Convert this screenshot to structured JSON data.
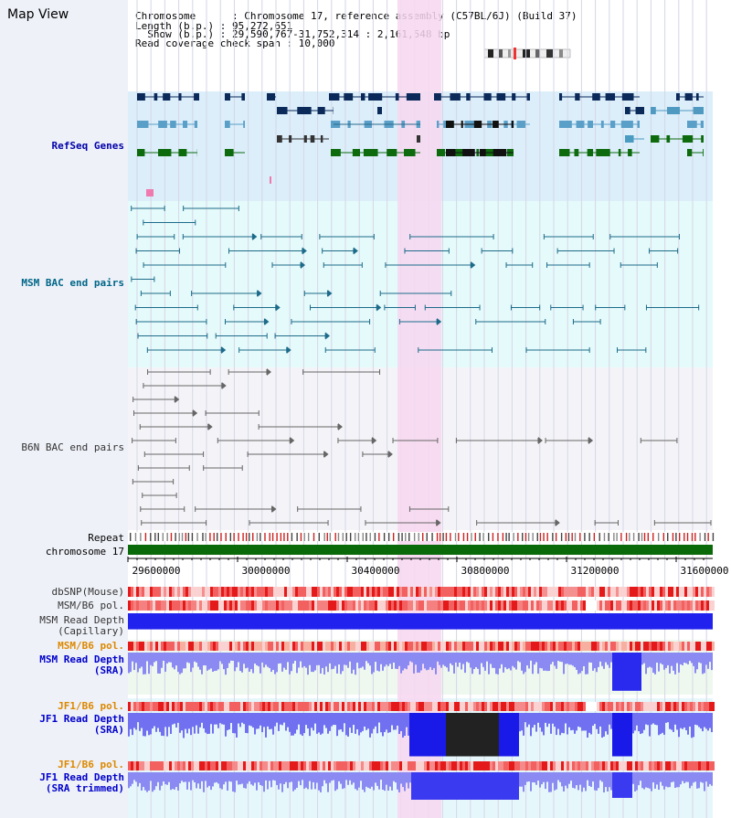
{
  "title": "Map View",
  "info": {
    "chromosome_line": "Chromosome      : Chromosome 17, reference assembly (C57BL/6J) (Build 37)",
    "length_line": "Length (b.p.) : 95,272,651",
    "show_line": "  Show (b.p.) : 29,590,767-31,752,314 : 2,161,548 bp",
    "coverage_line": "Read coverage check span : 10,000"
  },
  "tracks": {
    "refseq": "RefSeq Genes",
    "msm_bac": "MSM BAC end pairs",
    "b6n_bac": "B6N BAC end pairs",
    "repeat": "Repeat",
    "chromosome": "chromosome 17",
    "dbsnp": "dbSNP(Mouse)",
    "msm_b6_pol_1": "MSM/B6 pol.",
    "msm_depth_cap_1": "MSM Read Depth",
    "msm_depth_cap_2": "(Capillary)",
    "msm_b6_pol_2": "MSM/B6 pol.",
    "msm_depth_sra_1": "MSM Read Depth",
    "msm_depth_sra_2": "(SRA)",
    "jf1_b6_pol_1": "JF1/B6 pol.",
    "jf1_depth_sra_1": "JF1 Read Depth",
    "jf1_depth_sra_2": "(SRA)",
    "jf1_b6_pol_2": "JF1/B6 pol.",
    "jf1_depth_trim_1": "JF1 Read Depth",
    "jf1_depth_trim_2": "(SRA trimmed)"
  },
  "axis": {
    "ticks": [
      "29600000",
      "30000000",
      "30400000",
      "30800000",
      "31200000",
      "31600000"
    ]
  },
  "colors": {
    "refseq_label": "#0000aa",
    "msm_label": "#006688",
    "b6n_label": "#333333",
    "pol_label": "#dd8800",
    "depth_label": "#0000cc",
    "highlight": "#f7d7f0"
  }
}
